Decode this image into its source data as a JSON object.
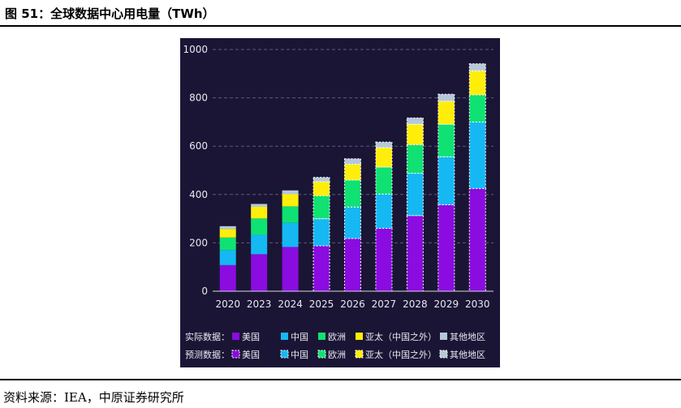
{
  "figure": {
    "title": "图 51：全球数据中心用电量（TWh）",
    "source": "资料来源：IEA，中原证券研究所"
  },
  "chart_data": {
    "type": "bar",
    "stacked": true,
    "categories": [
      "2020",
      "2023",
      "2024",
      "2025",
      "2026",
      "2027",
      "2028",
      "2029",
      "2030"
    ],
    "forecast_from_index": 3,
    "ylim": [
      0,
      1000
    ],
    "yticks": [
      "0",
      "200",
      "400",
      "600",
      "800",
      "1000"
    ],
    "grid": "horizontal dashed",
    "legend_position": "bottom",
    "series": [
      {
        "name": "美国",
        "color": "#8a0ce0",
        "values": [
          108,
          153,
          183,
          188,
          218,
          260,
          313,
          358,
          425
        ]
      },
      {
        "name": "中国",
        "color": "#16b8f3",
        "values": [
          62,
          80,
          100,
          112,
          130,
          142,
          175,
          198,
          275
        ]
      },
      {
        "name": "欧洲",
        "color": "#0fe272",
        "values": [
          52,
          68,
          68,
          95,
          112,
          112,
          118,
          135,
          112
        ]
      },
      {
        "name": "亚太（中国之外）",
        "color": "#ffee0a",
        "values": [
          35,
          48,
          50,
          58,
          65,
          80,
          85,
          95,
          100
        ]
      },
      {
        "name": "其他地区",
        "color": "#b6c8d8",
        "values": [
          12,
          12,
          16,
          18,
          23,
          23,
          26,
          29,
          29
        ]
      }
    ],
    "legend": {
      "actual_label": "实际数据：",
      "forecast_label": "预测数据："
    }
  }
}
